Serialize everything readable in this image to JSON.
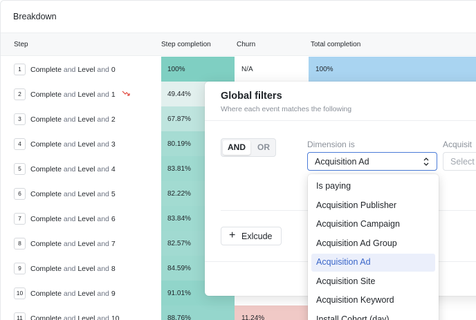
{
  "title": "Breakdown",
  "columns": {
    "step": "Step",
    "completion": "Step completion",
    "churn": "Churn",
    "total": "Total completion"
  },
  "conj": "and",
  "rows": [
    {
      "num": "1",
      "a": "Complete",
      "b": "Level",
      "c": "0",
      "completion": "100%",
      "churn": "N/A",
      "total": "100%"
    },
    {
      "num": "2",
      "a": "Complete",
      "b": "Level",
      "c": "1",
      "completion": "49.44%"
    },
    {
      "num": "3",
      "a": "Complete",
      "b": "Level",
      "c": "2",
      "completion": "67.87%"
    },
    {
      "num": "4",
      "a": "Complete",
      "b": "Level",
      "c": "3",
      "completion": "80.19%"
    },
    {
      "num": "5",
      "a": "Complete",
      "b": "Level",
      "c": "4",
      "completion": "83.81%"
    },
    {
      "num": "6",
      "a": "Complete",
      "b": "Level",
      "c": "5",
      "completion": "82.22%"
    },
    {
      "num": "7",
      "a": "Complete",
      "b": "Level",
      "c": "6",
      "completion": "83.84%"
    },
    {
      "num": "8",
      "a": "Complete",
      "b": "Level",
      "c": "7",
      "completion": "82.57%"
    },
    {
      "num": "9",
      "a": "Complete",
      "b": "Level",
      "c": "8",
      "completion": "84.59%"
    },
    {
      "num": "10",
      "a": "Complete",
      "b": "Level",
      "c": "9",
      "completion": "91.01%"
    },
    {
      "num": "11",
      "a": "Complete",
      "b": "Level",
      "c": "10",
      "completion": "88.76%",
      "churn": "11.24%"
    }
  ],
  "colors": {
    "completion_high": "#7fcfc2",
    "completion_low": "#f4f6f6",
    "total": "#a9d4f1",
    "churn": "#f0c9c6",
    "trend_down": "#e0483d",
    "accent": "#4a7bd8"
  },
  "modal": {
    "title": "Global filters",
    "subtitle": "Where each event matches the following",
    "and_label": "AND",
    "or_label": "OR",
    "dimension_label": "Dimension is",
    "dimension_value": "Acquisition Ad",
    "acq_label": "Acquisit",
    "acq_placeholder": "Select",
    "exclude_label": "Exlcude"
  },
  "dropdown": {
    "selected": "Acquisition Ad",
    "options": [
      "Is paying",
      "Acquisition Publisher",
      "Acquisition Campaign",
      "Acquisition Ad Group",
      "Acquisition Ad",
      "Acquisition Site",
      "Acquisition Keyword",
      "Install Cohort (day)"
    ]
  }
}
